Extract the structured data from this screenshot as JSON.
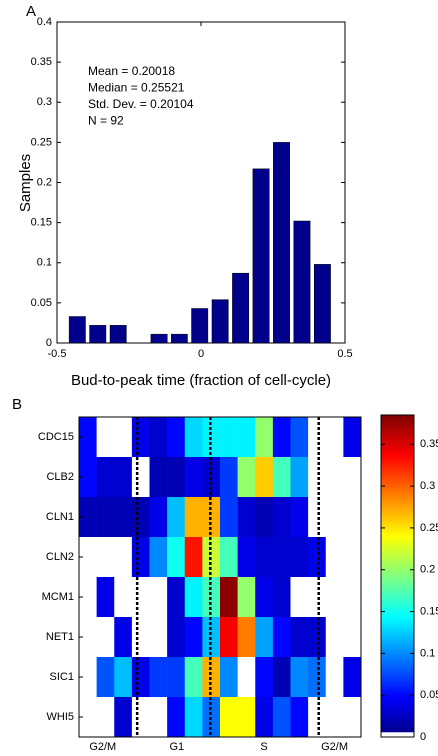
{
  "chart_data": [
    {
      "type": "histogram",
      "panel": "A",
      "xlabel": "Bud-to-peak time (fraction of cell-cycle)",
      "ylabel": "Samples",
      "annotations": [
        "Mean = 0.20018",
        "Median = 0.25521",
        "Std. Dev. = 0.20104",
        "N = 92"
      ],
      "bins": [
        -0.465,
        -0.394,
        -0.323,
        -0.252,
        -0.181,
        -0.11,
        -0.04,
        0.031,
        0.102,
        0.173,
        0.244,
        0.315,
        0.386,
        0.457
      ],
      "values": [
        0.033,
        0.022,
        0.022,
        0,
        0.011,
        0.011,
        0.043,
        0.054,
        0.087,
        0.217,
        0.25,
        0.152,
        0.098
      ],
      "color": "#00008b",
      "xlim": [
        -0.5,
        0.5
      ],
      "xticks": [
        -0.5,
        0,
        0.5
      ],
      "ylim": [
        0,
        0.4
      ],
      "yticks": [
        0,
        0.05,
        0.1,
        0.15,
        0.2,
        0.25,
        0.3,
        0.35,
        0.4
      ]
    },
    {
      "type": "heatmap",
      "panel": "B",
      "rows": [
        "CDC15",
        "CLB2",
        "CLN1",
        "CLN2",
        "MCM1",
        "NET1",
        "SIC1",
        "WHI5"
      ],
      "x_labels": [
        "G2/M",
        "G1",
        "S",
        "G2/M"
      ],
      "colormap": "jet",
      "values": [
        [
          0.05,
          null,
          null,
          0.04,
          0.03,
          0.05,
          0.13,
          0.14,
          0.14,
          0.14,
          0.2,
          0.05,
          0.08,
          null,
          null,
          0.04
        ],
        [
          0.05,
          0.03,
          0.03,
          null,
          0.02,
          0.02,
          0.04,
          0.03,
          0.07,
          0.2,
          0.26,
          0.17,
          0.11,
          null,
          null,
          null
        ],
        [
          0.02,
          0.02,
          0.02,
          0.02,
          0.04,
          0.12,
          0.27,
          0.27,
          0.07,
          0.03,
          0.02,
          0.03,
          0.04,
          null,
          null,
          null
        ],
        [
          null,
          null,
          null,
          0.04,
          0.1,
          0.15,
          0.33,
          0.22,
          0.17,
          0.04,
          0.03,
          0.03,
          0.03,
          0.04,
          null,
          null
        ],
        [
          null,
          0.04,
          null,
          null,
          null,
          0.03,
          0.14,
          0.17,
          0.38,
          0.2,
          0.04,
          0.03,
          null,
          null,
          null,
          null
        ],
        [
          null,
          null,
          0.04,
          null,
          null,
          0.03,
          0.05,
          0.12,
          0.34,
          0.29,
          0.11,
          0.05,
          0.03,
          0.03,
          null,
          null
        ],
        [
          null,
          0.08,
          0.12,
          0.04,
          0.07,
          0.07,
          0.17,
          0.27,
          0.1,
          null,
          0.05,
          0.02,
          0.1,
          0.09,
          null,
          0.04
        ],
        [
          null,
          null,
          0.03,
          null,
          null,
          0.05,
          0.13,
          0.09,
          0.24,
          0.24,
          0.04,
          0.08,
          0.05,
          null,
          null,
          null
        ]
      ],
      "clim": [
        0,
        0.385
      ],
      "cticks": [
        0,
        0.05,
        0.1,
        0.15,
        0.2,
        0.25,
        0.3,
        0.35
      ]
    }
  ]
}
